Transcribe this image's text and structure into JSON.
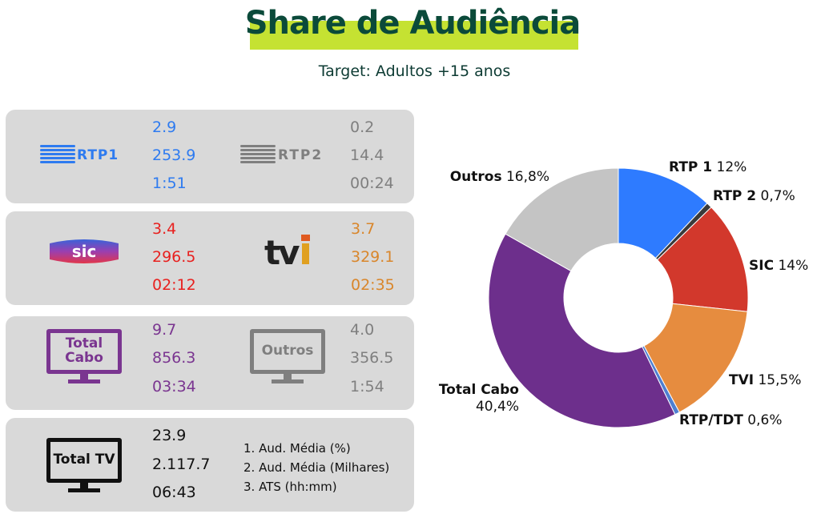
{
  "title": "Share de Audiência",
  "subtitle": "Target: Adultos +15 anos",
  "channels": [
    {
      "name": "RTP1",
      "share": "2.9",
      "aud": "253.9",
      "ats": "1:51",
      "color": "#2e7bf0"
    },
    {
      "name": "RTP2",
      "share": "0.2",
      "aud": "14.4",
      "ats": "00:24",
      "color": "#7f7f7f"
    },
    {
      "name": "SIC",
      "share": "3.4",
      "aud": "296.5",
      "ats": "02:12",
      "color": "#e8211f"
    },
    {
      "name": "tvi",
      "share": "3.7",
      "aud": "329.1",
      "ats": "02:35",
      "color": "#d9862b"
    },
    {
      "name": "Total Cabo",
      "share": "9.7",
      "aud": "856.3",
      "ats": "03:34",
      "color": "#7a3590"
    },
    {
      "name": "Outros",
      "share": "4.0",
      "aud": "356.5",
      "ats": "1:54",
      "color": "#7f7f7f"
    },
    {
      "name": "Total TV",
      "share": "23.9",
      "aud": "2.117.7",
      "ats": "06:43",
      "color": "#111111"
    }
  ],
  "notes": [
    "1. Aud. Média (%)",
    "2. Aud. Média (Milhares)",
    "3. ATS (hh:mm)"
  ],
  "chart_data": {
    "type": "pie",
    "donut": true,
    "slices": [
      {
        "name": "RTP 1",
        "label": "12%",
        "value": 12.0,
        "color": "#2e7bff"
      },
      {
        "name": "RTP 2",
        "label": "0,7%",
        "value": 0.7,
        "color": "#3a3a3a"
      },
      {
        "name": "SIC",
        "label": "14%",
        "value": 14.0,
        "color": "#d2382c"
      },
      {
        "name": "TVI",
        "label": "15,5%",
        "value": 15.5,
        "color": "#e68c3f"
      },
      {
        "name": "RTP/TDT",
        "label": "0,6%",
        "value": 0.6,
        "color": "#4f7fd1"
      },
      {
        "name": "Total Cabo",
        "label": "40,4%",
        "value": 40.4,
        "color": "#6d2f8c"
      },
      {
        "name": "Outros",
        "label": "16,8%",
        "value": 16.8,
        "color": "#c4c4c4"
      }
    ]
  }
}
